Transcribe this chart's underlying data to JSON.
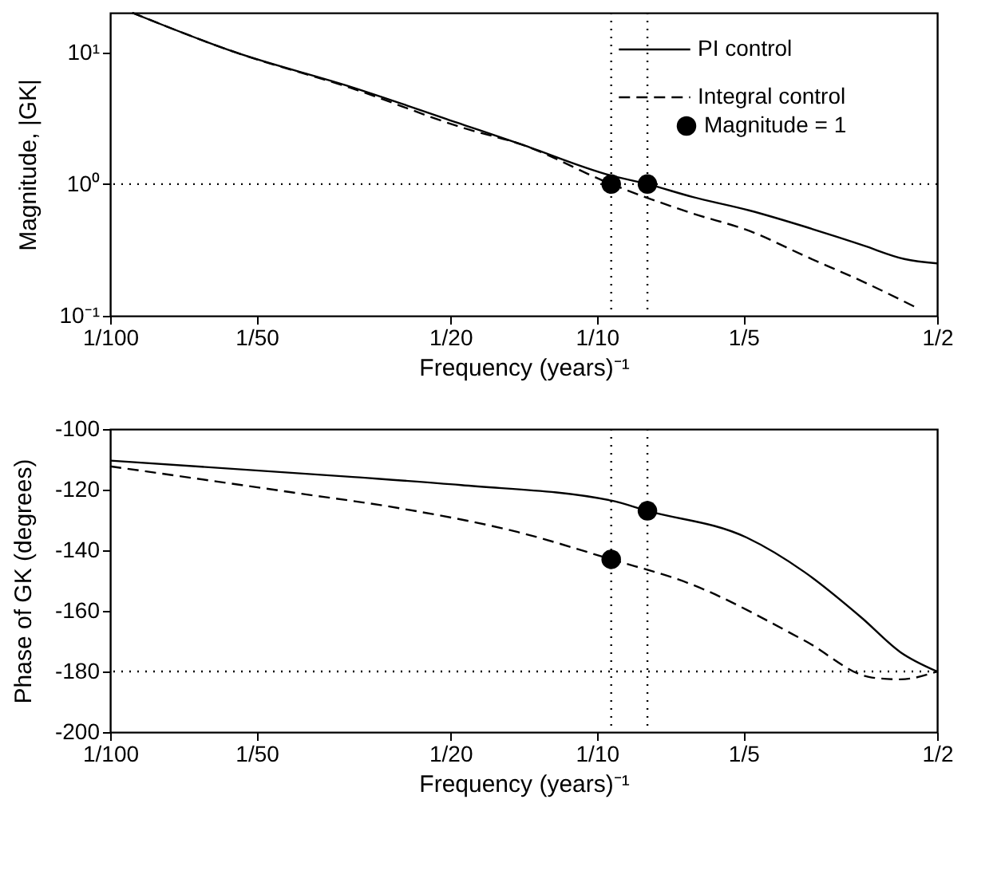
{
  "chart_data": [
    {
      "type": "line",
      "xlabel": "Frequency (years)⁻¹",
      "ylabel": "Magnitude, |GK|",
      "log": "xy",
      "grid": false,
      "legend": "top right",
      "xlim": [
        0.01,
        0.5
      ],
      "xticks": [
        {
          "value": 0.01,
          "label": "1/100"
        },
        {
          "value": 0.02,
          "label": "1/50"
        },
        {
          "value": 0.05,
          "label": "1/20"
        },
        {
          "value": 0.1,
          "label": "1/10"
        },
        {
          "value": 0.2,
          "label": "1/5"
        },
        {
          "value": 0.5,
          "label": "1/2"
        }
      ],
      "ylim": [
        0.1,
        20
      ],
      "yticks": [
        {
          "value": 0.1,
          "label": "10⁻¹"
        },
        {
          "value": 1,
          "label": "10⁰"
        },
        {
          "value": 10,
          "label": "10¹"
        }
      ],
      "series": [
        {
          "type": "line",
          "name": "PI control",
          "color": "#000000",
          "line_style": "solid",
          "x": [
            0.0111,
            0.0181,
            0.0311,
            0.0535,
            0.07,
            0.107,
            0.127,
            0.157,
            0.206,
            0.27,
            0.31,
            0.354,
            0.428,
            0.5
          ],
          "values": [
            20,
            10,
            5.5,
            2.8,
            2.0,
            1.16,
            1.0,
            0.8,
            0.63,
            0.47,
            0.4,
            0.34,
            0.27,
            0.25
          ]
        },
        {
          "type": "line",
          "name": "Integral control",
          "color": "#000000",
          "line_style": "dashed",
          "x": [
            0.0111,
            0.0181,
            0.0311,
            0.0535,
            0.07,
            0.107,
            0.157,
            0.206,
            0.27,
            0.354,
            0.452
          ],
          "values": [
            20,
            10,
            5.4,
            2.65,
            2.0,
            1.0,
            0.6,
            0.44,
            0.28,
            0.18,
            0.116
          ]
        },
        {
          "type": "scatter",
          "name": "Magnitude = 1",
          "color": "#000000",
          "marker": "circle",
          "x": [
            0.107,
            0.127
          ],
          "values": [
            1,
            1
          ]
        }
      ],
      "ref_lines": [
        {
          "axis": "y",
          "value": 1,
          "line_style": "dotted",
          "color": "#000000"
        },
        {
          "axis": "x",
          "value": 0.107,
          "line_style": "dotted",
          "color": "#000000"
        },
        {
          "axis": "x",
          "value": 0.127,
          "line_style": "dotted",
          "color": "#000000"
        }
      ]
    },
    {
      "type": "line",
      "xlabel": "Frequency (years)⁻¹",
      "ylabel": "Phase of GK (degrees)",
      "log": "x",
      "grid": false,
      "legend": false,
      "xlim": [
        0.01,
        0.5
      ],
      "xticks": [
        {
          "value": 0.01,
          "label": "1/100"
        },
        {
          "value": 0.02,
          "label": "1/50"
        },
        {
          "value": 0.05,
          "label": "1/20"
        },
        {
          "value": 0.1,
          "label": "1/10"
        },
        {
          "value": 0.2,
          "label": "1/5"
        },
        {
          "value": 0.5,
          "label": "1/2"
        }
      ],
      "ylim": [
        -200,
        -100
      ],
      "yticks": [
        -200,
        -180,
        -160,
        -140,
        -120,
        -100
      ],
      "series": [
        {
          "type": "line",
          "color": "#000000",
          "line_style": "solid",
          "x": [
            0.01,
            0.0307,
            0.0526,
            0.107,
            0.127,
            0.203,
            0.267,
            0.35,
            0.42,
            0.5
          ],
          "values": [
            -110.4,
            -115.7,
            -118.5,
            -123.6,
            -127,
            -135.8,
            -147.2,
            -162.3,
            -173.6,
            -180
          ]
        },
        {
          "type": "line",
          "color": "#000000",
          "line_style": "dashed",
          "x": [
            0.01,
            0.0234,
            0.0402,
            0.0688,
            0.107,
            0.155,
            0.267,
            0.367,
            0.42,
            0.5
          ],
          "values": [
            -112.3,
            -120.8,
            -126.4,
            -134,
            -143,
            -151,
            -169.8,
            -182,
            -182.6,
            -180
          ]
        },
        {
          "type": "scatter",
          "color": "#000000",
          "marker": "circle",
          "x": [
            0.107,
            0.127
          ],
          "values": [
            -143,
            -127
          ]
        }
      ],
      "ref_lines": [
        {
          "axis": "y",
          "value": -180,
          "line_style": "dotted",
          "color": "#000000"
        },
        {
          "axis": "x",
          "value": 0.107,
          "line_style": "dotted",
          "color": "#000000"
        },
        {
          "axis": "x",
          "value": 0.127,
          "line_style": "dotted",
          "color": "#000000"
        }
      ]
    }
  ]
}
